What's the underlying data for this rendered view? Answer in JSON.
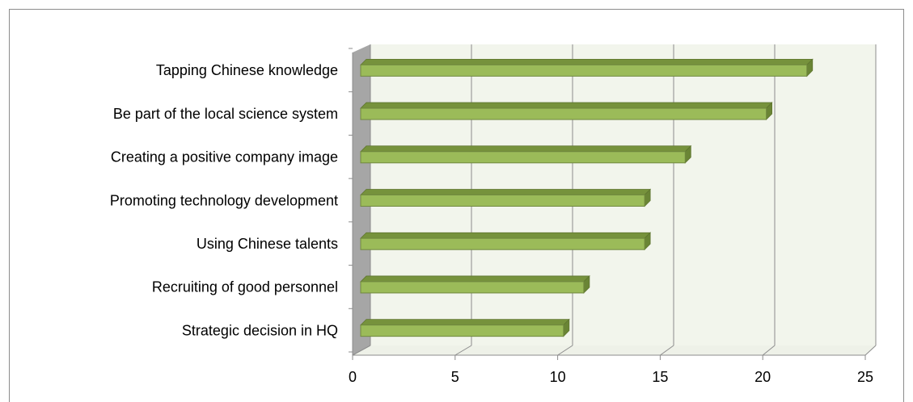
{
  "chart_data": {
    "type": "bar3d",
    "categories": [
      "Tapping Chinese knowledge",
      "Be part of the local science system",
      "Creating a positive company image",
      "Promoting technology development",
      "Using Chinese talents",
      "Recruiting of good personnel",
      "Strategic decision in HQ"
    ],
    "values": [
      22,
      20,
      16,
      14,
      14,
      11,
      10
    ],
    "color": "#9bbb59",
    "xlim": [
      0,
      25
    ],
    "xticks": [
      0,
      5,
      10,
      15,
      20,
      25
    ],
    "grid": true
  }
}
